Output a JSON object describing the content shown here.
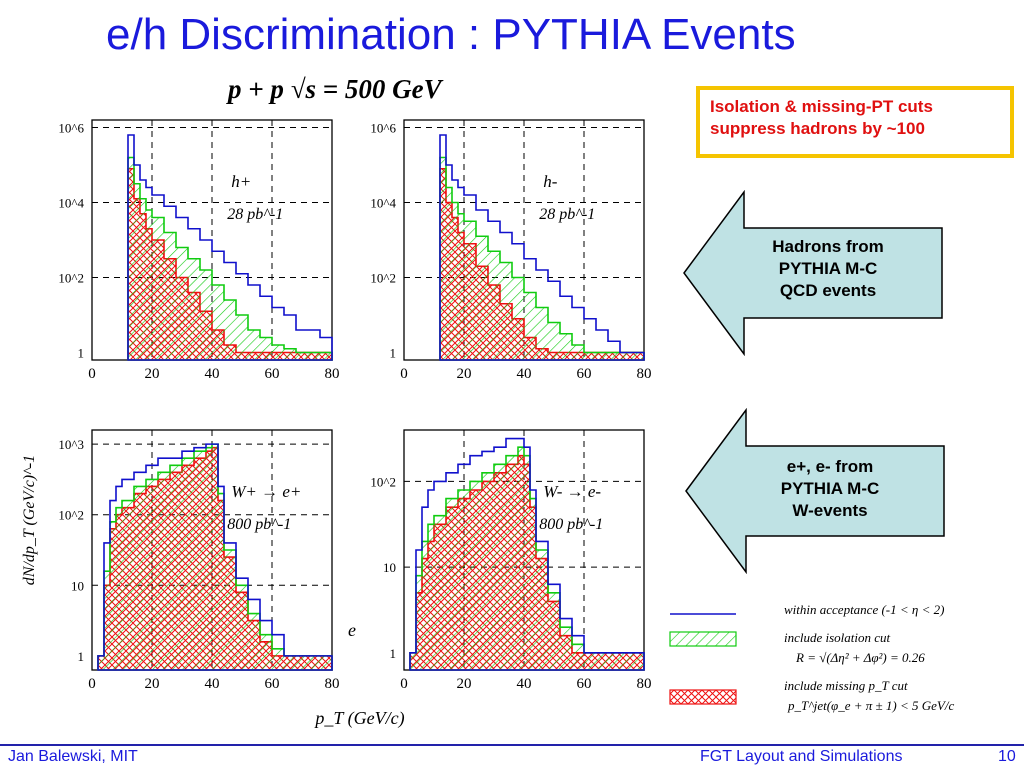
{
  "slide": {
    "title": "e/h Discrimination : PYTHIA Events",
    "heading": "p + p   √s = 500 GeV",
    "callout": [
      "Isolation & missing-PT cuts",
      "suppress hadrons by ~100"
    ],
    "arrow1": [
      "Hadrons from",
      "PYTHIA M-C",
      "QCD events"
    ],
    "arrow2": [
      "e+, e- from",
      "PYTHIA M-C",
      "W-events"
    ],
    "ylabel": "dN/dp_T  (GeV/c)^-1",
    "xlabel": "p_T (GeV/c)",
    "e_label": "e",
    "footer_left": "Jan Balewski, MIT",
    "footer_center": "FGT Layout and Simulations",
    "page": "10"
  },
  "legend": {
    "items": [
      {
        "label": "within acceptance (-1 < η < 2)",
        "style": "line",
        "color": "#1010cc"
      },
      {
        "label": "include isolation cut",
        "sub": "R = √(Δη² + Δφ²) = 0.26",
        "style": "hatch",
        "color": "#10cc10"
      },
      {
        "label": "include missing p_T cut",
        "sub": "p_T^jet(φ_e + π ± 1) < 5  GeV/c",
        "style": "hatch",
        "color": "#ee1010"
      }
    ]
  },
  "colors": {
    "title": "#1a1adc",
    "callout_border": "#f5c400",
    "callout_text": "#e01010",
    "arrow_fill": "#bfe2e4",
    "blue": "#1010cc",
    "green": "#10cc10",
    "red": "#ee1010"
  },
  "chart_data": [
    {
      "type": "area",
      "label": "h+",
      "lumi": "28 pb^-1",
      "log_y": true,
      "xlim": [
        0,
        80
      ],
      "ylim_log10": [
        -0.2,
        6.2
      ],
      "y_ticks": [
        "1",
        "10^2",
        "10^4",
        "10^6"
      ],
      "x_ticks": [
        "0",
        "20",
        "40",
        "60",
        "80"
      ],
      "series": [
        {
          "x": [
            12,
            14,
            16,
            18,
            20,
            24,
            28,
            32,
            36,
            40,
            44,
            48,
            52,
            56,
            60,
            64,
            68,
            72,
            76,
            80
          ],
          "log10_y": [
            5.8,
            5.0,
            4.6,
            4.4,
            4.2,
            3.9,
            3.6,
            3.3,
            3.0,
            2.7,
            2.4,
            2.1,
            1.8,
            1.5,
            1.2,
            1.0,
            0.6,
            0.6,
            0.4,
            0.2
          ]
        },
        {
          "x": [
            12,
            14,
            16,
            18,
            20,
            24,
            28,
            32,
            36,
            40,
            44,
            48,
            52,
            56,
            60,
            64,
            68,
            72,
            76,
            80
          ],
          "log10_y": [
            5.2,
            4.5,
            4.1,
            3.8,
            3.6,
            3.2,
            2.8,
            2.5,
            2.2,
            1.8,
            1.4,
            1.0,
            0.6,
            0.4,
            0.2,
            0.1,
            0.0,
            0.0,
            0.0,
            0.0
          ]
        },
        {
          "x": [
            12,
            14,
            16,
            18,
            20,
            24,
            28,
            32,
            36,
            40,
            44,
            48,
            52,
            56,
            60,
            64,
            68,
            72,
            76,
            80
          ],
          "log10_y": [
            4.9,
            4.1,
            3.7,
            3.3,
            3.0,
            2.5,
            2.0,
            1.6,
            1.1,
            0.6,
            0.2,
            0.0,
            0.0,
            0.0,
            0.0,
            0.0,
            0.0,
            0.0,
            0.0,
            0.0
          ]
        }
      ]
    },
    {
      "type": "area",
      "label": "h-",
      "lumi": "28 pb^-1",
      "log_y": true,
      "xlim": [
        0,
        80
      ],
      "ylim_log10": [
        -0.2,
        6.2
      ],
      "y_ticks": [
        "1",
        "10^2",
        "10^4",
        "10^6"
      ],
      "x_ticks": [
        "0",
        "20",
        "40",
        "60",
        "80"
      ],
      "series": [
        {
          "x": [
            12,
            14,
            16,
            18,
            20,
            24,
            28,
            32,
            36,
            40,
            44,
            48,
            52,
            56,
            60,
            64,
            68,
            72,
            76,
            80
          ],
          "log10_y": [
            5.8,
            5.0,
            4.6,
            4.4,
            4.2,
            3.8,
            3.5,
            3.2,
            2.9,
            2.5,
            2.2,
            1.9,
            1.5,
            1.2,
            0.9,
            0.6,
            0.3,
            0.0,
            0.0,
            0.0
          ]
        },
        {
          "x": [
            12,
            14,
            16,
            18,
            20,
            24,
            28,
            32,
            36,
            40,
            44,
            48,
            52,
            56,
            60,
            64,
            68,
            72,
            76,
            80
          ],
          "log10_y": [
            5.2,
            4.4,
            4.0,
            3.7,
            3.5,
            3.1,
            2.7,
            2.4,
            2.0,
            1.6,
            1.2,
            0.8,
            0.5,
            0.2,
            0.0,
            0.0,
            0.0,
            0.0,
            0.0,
            0.0
          ]
        },
        {
          "x": [
            12,
            14,
            16,
            18,
            20,
            24,
            28,
            32,
            36,
            40,
            44,
            48,
            52,
            56,
            60,
            64,
            68,
            72,
            76,
            80
          ],
          "log10_y": [
            4.9,
            4.0,
            3.6,
            3.2,
            2.9,
            2.3,
            1.8,
            1.3,
            0.9,
            0.4,
            0.1,
            0.0,
            0.0,
            0.0,
            0.0,
            0.0,
            0.0,
            0.0,
            0.0,
            0.0
          ]
        }
      ]
    },
    {
      "type": "area",
      "label": "W+ → e+",
      "lumi": "800 pb^-1",
      "log_y": true,
      "xlim": [
        0,
        80
      ],
      "ylim_log10": [
        -0.2,
        3.2
      ],
      "y_ticks": [
        "1",
        "10",
        "10^2",
        "10^3"
      ],
      "x_ticks": [
        "0",
        "20",
        "40",
        "60",
        "80"
      ],
      "series": [
        {
          "x": [
            2,
            4,
            6,
            8,
            10,
            14,
            18,
            22,
            26,
            30,
            34,
            38,
            40,
            42,
            44,
            48,
            52,
            56,
            60,
            64,
            68
          ],
          "log10_y": [
            0.0,
            1.6,
            2.2,
            2.4,
            2.5,
            2.6,
            2.7,
            2.8,
            2.8,
            2.9,
            2.95,
            3.0,
            3.0,
            2.4,
            1.6,
            1.1,
            0.8,
            0.5,
            0.3,
            0.0,
            0.0
          ]
        },
        {
          "x": [
            2,
            4,
            6,
            8,
            10,
            14,
            18,
            22,
            26,
            30,
            34,
            38,
            40,
            42,
            44,
            48,
            52,
            56,
            60,
            64,
            68
          ],
          "log10_y": [
            0.0,
            1.2,
            1.9,
            2.1,
            2.2,
            2.4,
            2.5,
            2.6,
            2.7,
            2.8,
            2.9,
            2.95,
            3.0,
            2.3,
            1.5,
            1.0,
            0.6,
            0.3,
            0.1,
            0.0,
            0.0
          ]
        },
        {
          "x": [
            2,
            4,
            6,
            8,
            10,
            14,
            18,
            22,
            26,
            30,
            34,
            38,
            40,
            42,
            44,
            48,
            52,
            56,
            60,
            64,
            68
          ],
          "log10_y": [
            0.0,
            1.0,
            1.8,
            2.0,
            2.1,
            2.3,
            2.4,
            2.5,
            2.6,
            2.7,
            2.8,
            2.9,
            2.95,
            2.2,
            1.4,
            0.9,
            0.5,
            0.2,
            0.0,
            0.0,
            0.0
          ]
        }
      ]
    },
    {
      "type": "area",
      "label": "W- → e-",
      "lumi": "800 pb^-1",
      "log_y": true,
      "xlim": [
        0,
        80
      ],
      "ylim_log10": [
        -0.2,
        2.6
      ],
      "y_ticks": [
        "1",
        "10",
        "10^2"
      ],
      "x_ticks": [
        "0",
        "20",
        "40",
        "60",
        "80"
      ],
      "series": [
        {
          "x": [
            2,
            4,
            6,
            8,
            10,
            14,
            18,
            22,
            26,
            30,
            34,
            38,
            40,
            42,
            44,
            48,
            52,
            56,
            60,
            64,
            68
          ],
          "log10_y": [
            0.0,
            1.2,
            1.7,
            1.9,
            2.0,
            2.1,
            2.2,
            2.3,
            2.35,
            2.4,
            2.5,
            2.5,
            2.4,
            1.9,
            1.3,
            0.8,
            0.4,
            0.2,
            0.0,
            0.0,
            0.0
          ]
        },
        {
          "x": [
            2,
            4,
            6,
            8,
            10,
            14,
            18,
            22,
            26,
            30,
            34,
            38,
            40,
            42,
            44,
            48,
            52,
            56,
            60,
            64,
            68
          ],
          "log10_y": [
            0.0,
            0.9,
            1.3,
            1.5,
            1.6,
            1.8,
            1.9,
            2.0,
            2.1,
            2.2,
            2.3,
            2.4,
            2.3,
            1.8,
            1.2,
            0.7,
            0.3,
            0.1,
            0.0,
            0.0,
            0.0
          ]
        },
        {
          "x": [
            2,
            4,
            6,
            8,
            10,
            14,
            18,
            22,
            26,
            30,
            34,
            38,
            40,
            42,
            44,
            48,
            52,
            56,
            60,
            64,
            68
          ],
          "log10_y": [
            0.0,
            0.7,
            1.1,
            1.3,
            1.5,
            1.7,
            1.8,
            1.9,
            2.0,
            2.1,
            2.2,
            2.3,
            2.2,
            1.7,
            1.1,
            0.6,
            0.2,
            0.0,
            0.0,
            0.0,
            0.0
          ]
        }
      ]
    }
  ]
}
